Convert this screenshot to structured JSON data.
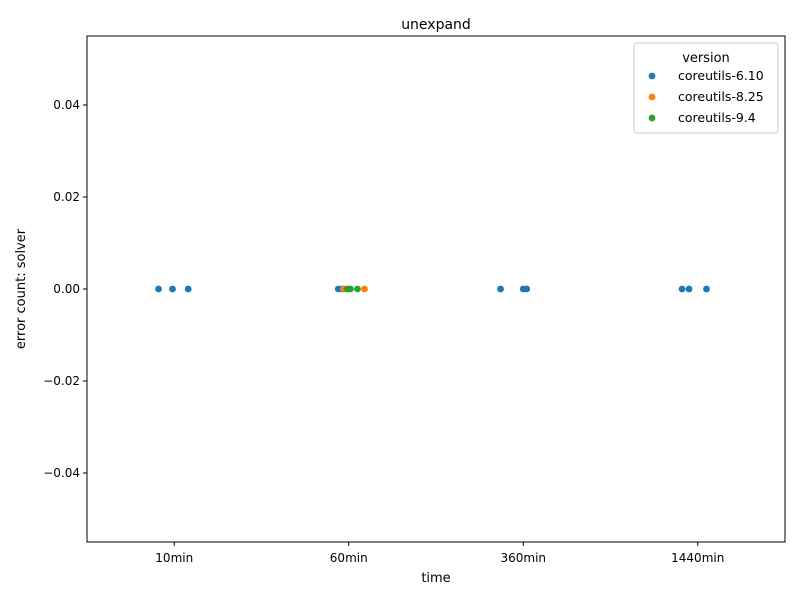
{
  "chart_data": {
    "type": "scatter",
    "title": "unexpand",
    "xlabel": "time",
    "ylabel": "error count: solver",
    "categories": [
      "10min",
      "60min",
      "360min",
      "1440min"
    ],
    "ylim": [
      -0.055,
      0.055
    ],
    "yticks": [
      -0.04,
      -0.02,
      0.0,
      0.02,
      0.04
    ],
    "ytick_labels": [
      "−0.04",
      "−0.02",
      "0.00",
      "0.02",
      "0.04"
    ],
    "grid": false,
    "legend": {
      "title": "version",
      "placement": "top-right",
      "entries": [
        {
          "name": "coreutils-6.10",
          "color": "#1f77b4"
        },
        {
          "name": "coreutils-8.25",
          "color": "#ff7f0e"
        },
        {
          "name": "coreutils-9.4",
          "color": "#2ca02c"
        }
      ]
    },
    "series": [
      {
        "name": "coreutils-6.10",
        "color": "#1f77b4",
        "points": [
          {
            "x": "10min",
            "jitter": -0.09,
            "y": 0
          },
          {
            "x": "10min",
            "jitter": -0.01,
            "y": 0
          },
          {
            "x": "10min",
            "jitter": 0.08,
            "y": 0
          },
          {
            "x": "60min",
            "jitter": -0.06,
            "y": 0
          },
          {
            "x": "60min",
            "jitter": -0.04,
            "y": 0
          },
          {
            "x": "360min",
            "jitter": -0.13,
            "y": 0
          },
          {
            "x": "360min",
            "jitter": 0.0,
            "y": 0
          },
          {
            "x": "360min",
            "jitter": 0.02,
            "y": 0
          },
          {
            "x": "1440min",
            "jitter": -0.09,
            "y": 0
          },
          {
            "x": "1440min",
            "jitter": -0.05,
            "y": 0
          },
          {
            "x": "1440min",
            "jitter": 0.05,
            "y": 0
          }
        ]
      },
      {
        "name": "coreutils-8.25",
        "color": "#ff7f0e",
        "points": [
          {
            "x": "60min",
            "jitter": -0.03,
            "y": 0
          },
          {
            "x": "60min",
            "jitter": 0.0,
            "y": 0
          },
          {
            "x": "60min",
            "jitter": 0.09,
            "y": 0
          }
        ]
      },
      {
        "name": "coreutils-9.4",
        "color": "#2ca02c",
        "points": [
          {
            "x": "60min",
            "jitter": -0.01,
            "y": 0
          },
          {
            "x": "60min",
            "jitter": 0.01,
            "y": 0
          },
          {
            "x": "60min",
            "jitter": 0.05,
            "y": 0
          }
        ]
      }
    ]
  }
}
